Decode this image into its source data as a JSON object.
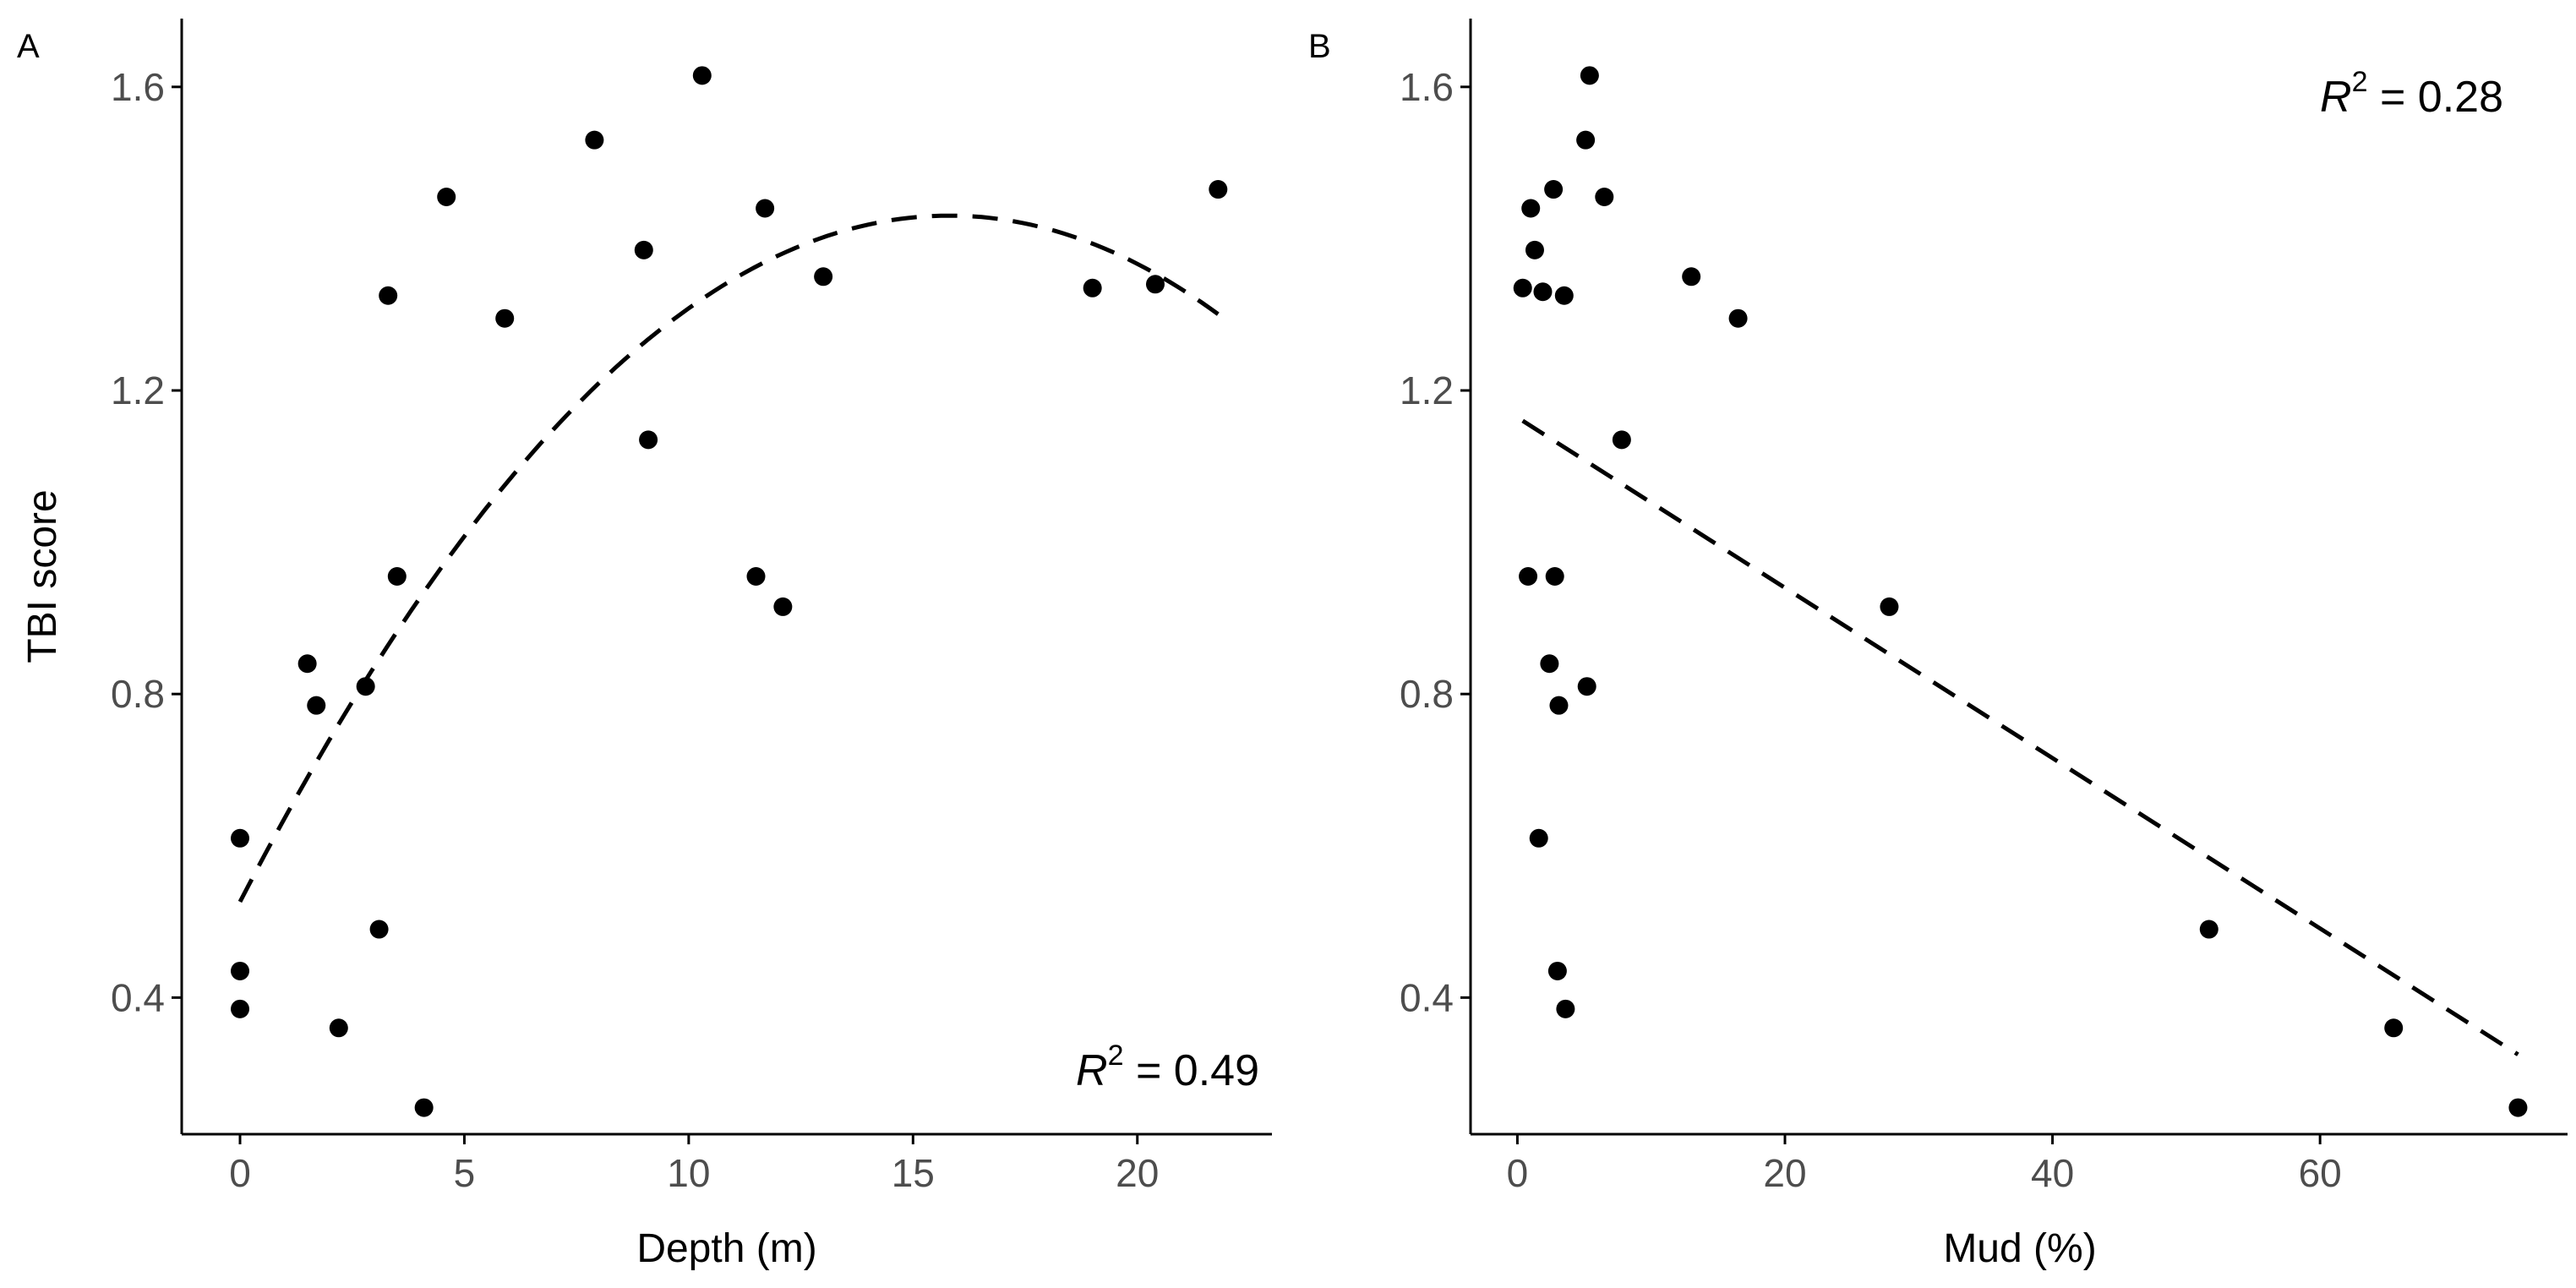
{
  "y_axis_title": "TBI score",
  "chart_data": [
    {
      "panel": "A",
      "type": "scatter",
      "xlabel": "Depth (m)",
      "ylabel": "TBI score",
      "xlim": [
        -1.3,
        23
      ],
      "ylim": [
        0.22,
        1.69
      ],
      "xticks": [
        0,
        5,
        10,
        15,
        20
      ],
      "yticks": [
        0.4,
        0.8,
        1.2,
        1.6
      ],
      "ytick_labels": [
        "0.4",
        "0.8",
        "1.2",
        "1.6"
      ],
      "grid": false,
      "points": [
        {
          "x": 0.0,
          "y": 0.61
        },
        {
          "x": 0.0,
          "y": 0.435
        },
        {
          "x": 0.0,
          "y": 0.385
        },
        {
          "x": 1.5,
          "y": 0.84
        },
        {
          "x": 1.7,
          "y": 0.785
        },
        {
          "x": 2.2,
          "y": 0.36
        },
        {
          "x": 2.8,
          "y": 0.81
        },
        {
          "x": 3.1,
          "y": 0.49
        },
        {
          "x": 3.3,
          "y": 1.325
        },
        {
          "x": 3.5,
          "y": 0.955
        },
        {
          "x": 4.1,
          "y": 0.255
        },
        {
          "x": 4.6,
          "y": 1.455
        },
        {
          "x": 5.9,
          "y": 1.295
        },
        {
          "x": 7.9,
          "y": 1.53
        },
        {
          "x": 9.0,
          "y": 1.385
        },
        {
          "x": 9.1,
          "y": 1.135
        },
        {
          "x": 10.3,
          "y": 1.615
        },
        {
          "x": 11.5,
          "y": 0.955
        },
        {
          "x": 11.7,
          "y": 1.44
        },
        {
          "x": 12.1,
          "y": 0.915
        },
        {
          "x": 13.0,
          "y": 1.35
        },
        {
          "x": 19.0,
          "y": 1.335
        },
        {
          "x": 20.4,
          "y": 1.34
        },
        {
          "x": 21.8,
          "y": 1.465
        }
      ],
      "fit": {
        "type": "quadratic",
        "style": "dashed",
        "x_range": [
          0,
          21.8
        ],
        "x": [
          0,
          2,
          4,
          6,
          8,
          10,
          12,
          14,
          16,
          18,
          20,
          21.8
        ],
        "y": [
          0.52,
          0.74,
          0.93,
          1.09,
          1.21,
          1.31,
          1.38,
          1.415,
          1.425,
          1.405,
          1.365,
          1.31
        ]
      },
      "r2_label": "R",
      "r2_sup": "2",
      "r2_value": " = 0.49",
      "r2_position": "bottom-right"
    },
    {
      "panel": "B",
      "type": "scatter",
      "xlabel": "Mud (%)",
      "ylabel": "",
      "xlim": [
        -3.5,
        78.5
      ],
      "ylim": [
        0.22,
        1.69
      ],
      "xticks": [
        0,
        20,
        40,
        60
      ],
      "yticks": [
        0.4,
        0.8,
        1.2,
        1.6
      ],
      "ytick_labels": [
        "0.4",
        "0.8",
        "1.2",
        "1.6"
      ],
      "grid": false,
      "points": [
        {
          "x": 0.4,
          "y": 1.335
        },
        {
          "x": 0.8,
          "y": 0.955
        },
        {
          "x": 1.0,
          "y": 1.44
        },
        {
          "x": 1.3,
          "y": 1.385
        },
        {
          "x": 1.6,
          "y": 0.61
        },
        {
          "x": 1.9,
          "y": 1.33
        },
        {
          "x": 2.4,
          "y": 0.84
        },
        {
          "x": 2.7,
          "y": 1.465
        },
        {
          "x": 2.8,
          "y": 0.955
        },
        {
          "x": 3.0,
          "y": 0.435
        },
        {
          "x": 3.1,
          "y": 0.785
        },
        {
          "x": 3.5,
          "y": 1.325
        },
        {
          "x": 3.6,
          "y": 0.385
        },
        {
          "x": 5.1,
          "y": 1.53
        },
        {
          "x": 5.2,
          "y": 0.81
        },
        {
          "x": 5.4,
          "y": 1.615
        },
        {
          "x": 6.5,
          "y": 1.455
        },
        {
          "x": 7.8,
          "y": 1.135
        },
        {
          "x": 13.0,
          "y": 1.35
        },
        {
          "x": 16.5,
          "y": 1.295
        },
        {
          "x": 27.8,
          "y": 0.915
        },
        {
          "x": 51.7,
          "y": 0.49
        },
        {
          "x": 65.5,
          "y": 0.36
        },
        {
          "x": 74.8,
          "y": 0.255
        }
      ],
      "fit": {
        "type": "linear",
        "style": "dashed",
        "x": [
          0.4,
          74.8
        ],
        "y": [
          1.16,
          0.325
        ]
      },
      "r2_label": "R",
      "r2_sup": "2",
      "r2_value": " = 0.28",
      "r2_position": "top-right"
    }
  ]
}
